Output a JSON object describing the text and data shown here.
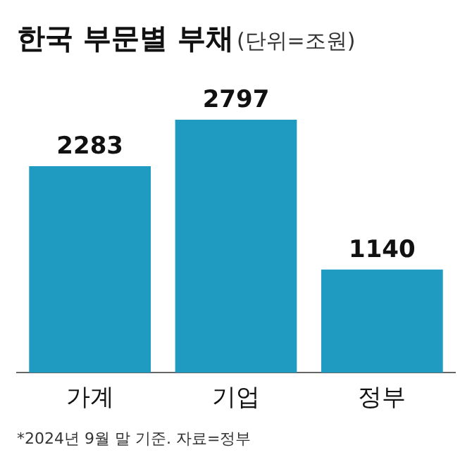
{
  "chart_data": {
    "type": "bar",
    "title": "한국 부문별 부채",
    "subtitle": "(단위=조원)",
    "categories": [
      "가계",
      "기업",
      "정부"
    ],
    "values": [
      2283,
      2797,
      1140
    ],
    "color": "#1f9bc2",
    "data_labels": true,
    "grid": false,
    "legend": false,
    "tick_labels": "x",
    "annotations": [
      "*2024년 9월 말 기준. 자료=정부"
    ]
  }
}
